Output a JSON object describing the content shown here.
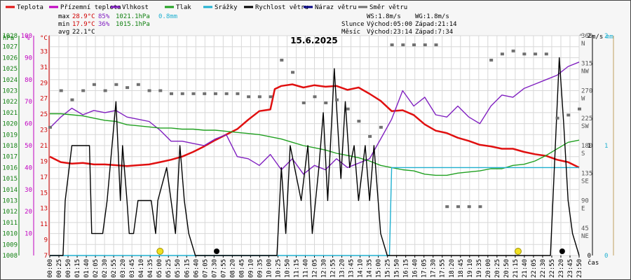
{
  "chart_data": {
    "type": "line",
    "title": "15.6.2025",
    "x_unit": "čas",
    "x_ticks": [
      "00:00",
      "00:25",
      "00:50",
      "01:15",
      "01:40",
      "02:05",
      "02:30",
      "02:55",
      "03:20",
      "03:45",
      "04:10",
      "04:35",
      "05:00",
      "05:25",
      "05:50",
      "06:15",
      "06:40",
      "07:05",
      "07:30",
      "07:55",
      "08:20",
      "08:45",
      "09:10",
      "09:35",
      "10:00",
      "10:25",
      "10:50",
      "11:15",
      "11:40",
      "12:05",
      "12:30",
      "12:55",
      "13:20",
      "13:45",
      "14:10",
      "14:35",
      "15:00",
      "15:25",
      "15:50",
      "16:15",
      "16:40",
      "17:05",
      "17:30",
      "17:55",
      "18:20",
      "18:45",
      "19:10",
      "19:35",
      "20:00",
      "20:25",
      "20:50",
      "21:15",
      "21:40",
      "22:05",
      "22:30",
      "22:55",
      "23:20",
      "23:45",
      "23:50"
    ],
    "x_range_hours": [
      0,
      24
    ],
    "axes": {
      "pressure": {
        "unit": "hPa",
        "min": 1008,
        "max": 1028,
        "ticks": [
          1008,
          1009,
          1010,
          1011,
          1012,
          1013,
          1014,
          1015,
          1016,
          1017,
          1018,
          1019,
          1020,
          1021,
          1022,
          1023,
          1024,
          1025,
          1026,
          1027,
          1028
        ]
      },
      "humidity": {
        "unit": "%",
        "min": 0,
        "max": 100,
        "ticks": [
          10,
          20,
          30,
          40,
          50,
          60,
          70,
          80,
          90,
          100
        ]
      },
      "temperature": {
        "unit": "°C",
        "min": 7,
        "max": 35,
        "ticks": [
          7,
          9,
          11,
          13,
          15,
          17,
          19,
          21,
          23,
          25,
          27,
          29,
          31,
          33
        ]
      },
      "direction": {
        "unit": "°",
        "min": 0,
        "max": 360,
        "ticks": [
          "45 NE",
          "90 E",
          "135 SE",
          "180 S",
          "225 SW",
          "270 W",
          "315 NW",
          "360 N"
        ]
      },
      "wind": {
        "unit": "m/s",
        "min": 0,
        "max": 2,
        "ticks": [
          "0",
          "1",
          "2"
        ]
      },
      "rain": {
        "unit": "mm",
        "min": 0,
        "max": 2,
        "ticks": [
          "0",
          "1",
          "2"
        ]
      }
    },
    "legend": [
      {
        "label": "Teplota",
        "color": "#e01010"
      },
      {
        "label": "Přízemní teplota",
        "color": "#c000c0"
      },
      {
        "label": "Vlhkost",
        "color": "#8020c0"
      },
      {
        "label": "Tlak",
        "color": "#20a020"
      },
      {
        "label": "Srážky",
        "color": "#20b0d0"
      },
      {
        "label": "Rychlost větru",
        "color": "#000000"
      },
      {
        "label": "Náraz větru",
        "color": "#000080"
      },
      {
        "label": "Směr větru",
        "color": "#707070"
      }
    ],
    "summary": {
      "max_row": {
        "label": "max",
        "temp": "28.9°C",
        "hum": "85%",
        "press": "1021.1hPa",
        "rain": "0.8mm"
      },
      "min_row": {
        "label": "min",
        "temp": "17.9°C",
        "hum": "36%",
        "press": "1015.1hPa"
      },
      "avg_row": {
        "label": "avg",
        "temp": "22.1°C"
      },
      "ws": "WS:1.8m/s",
      "wg": "WG:1.8m/s",
      "sun_label": "Slunce",
      "sunrise": "Východ:05:00",
      "sunset": "Západ:21:14",
      "moon_label": "Měsíc",
      "moonrise": "Východ:23:14",
      "moonset": "Západ:7:34"
    },
    "series": [
      {
        "name": "Teplota",
        "axis": "temperature",
        "color": "#e01010",
        "x": [
          0,
          0.5,
          1,
          1.5,
          2,
          2.5,
          3,
          3.5,
          4,
          4.5,
          5,
          5.5,
          6,
          6.5,
          7,
          7.5,
          8,
          8.5,
          9,
          9.5,
          10,
          10.2,
          10.5,
          11,
          11.5,
          12,
          12.5,
          13,
          13.5,
          14,
          14.5,
          15,
          15.5,
          16,
          16.5,
          17,
          17.5,
          18,
          18.5,
          19,
          19.5,
          20,
          20.5,
          21,
          21.5,
          22,
          22.5,
          23,
          23.5,
          24
        ],
        "values": [
          19.6,
          18.9,
          18.7,
          18.8,
          18.6,
          18.6,
          18.5,
          18.4,
          18.5,
          18.6,
          18.9,
          19.2,
          19.6,
          20.2,
          20.9,
          21.7,
          22.4,
          23.1,
          24.3,
          25.4,
          25.6,
          28.2,
          28.6,
          28.8,
          28.4,
          28.7,
          28.5,
          28.6,
          28.1,
          28.4,
          27.6,
          26.7,
          25.4,
          25.5,
          24.9,
          23.7,
          22.9,
          22.6,
          22.0,
          21.6,
          21.1,
          20.9,
          20.6,
          20.6,
          20.2,
          19.9,
          19.7,
          19.2,
          18.9,
          18.2
        ]
      },
      {
        "name": "Vlhkost",
        "axis": "humidity",
        "color": "#8020c0",
        "x": [
          0,
          0.5,
          1,
          1.5,
          2,
          2.5,
          3,
          3.5,
          4,
          4.5,
          5,
          5.5,
          6,
          6.5,
          7,
          7.5,
          8,
          8.5,
          9,
          9.5,
          10,
          10.5,
          11,
          11.5,
          12,
          12.5,
          13,
          13.5,
          14,
          14.5,
          15,
          15.5,
          16,
          16.5,
          17,
          17.5,
          18,
          18.5,
          19,
          19.5,
          20,
          20.5,
          21,
          21.5,
          22,
          22.5,
          23,
          23.5,
          24
        ],
        "values": [
          58,
          63,
          67,
          64,
          66,
          65,
          66,
          63,
          62,
          61,
          57,
          52,
          52,
          51,
          50,
          53,
          55,
          45,
          44,
          41,
          46,
          39,
          44,
          37,
          41,
          39,
          44,
          40,
          42,
          44,
          53,
          62,
          75,
          68,
          72,
          64,
          63,
          68,
          63,
          60,
          68,
          73,
          72,
          76,
          78,
          80,
          82,
          86,
          88
        ]
      },
      {
        "name": "Tlak",
        "axis": "pressure",
        "color": "#20a020",
        "x": [
          0,
          0.5,
          1,
          1.5,
          2,
          2.5,
          3,
          3.5,
          4,
          4.5,
          5,
          5.5,
          6,
          6.5,
          7,
          7.5,
          8,
          8.5,
          9,
          9.5,
          10,
          10.5,
          11,
          11.5,
          12,
          12.5,
          13,
          13.5,
          14,
          14.5,
          15,
          15.5,
          16,
          16.5,
          17,
          17.5,
          18,
          18.5,
          19,
          19.5,
          20,
          20.5,
          21,
          21.5,
          22,
          22.5,
          23,
          23.5,
          24
        ],
        "values": [
          1020.9,
          1020.9,
          1020.8,
          1020.7,
          1020.5,
          1020.3,
          1020.2,
          1019.9,
          1019.8,
          1019.7,
          1019.6,
          1019.6,
          1019.5,
          1019.5,
          1019.4,
          1019.4,
          1019.3,
          1019.2,
          1019.1,
          1019.0,
          1018.8,
          1018.6,
          1018.3,
          1018.0,
          1017.8,
          1017.6,
          1017.3,
          1017.1,
          1016.9,
          1016.6,
          1016.2,
          1016.0,
          1015.8,
          1015.7,
          1015.4,
          1015.3,
          1015.3,
          1015.5,
          1015.6,
          1015.7,
          1015.9,
          1015.9,
          1016.2,
          1016.3,
          1016.6,
          1017.1,
          1017.7,
          1018.3,
          1018.5
        ]
      },
      {
        "name": "Srážky",
        "axis": "rain",
        "color": "#20b0d0",
        "x": [
          0,
          15.4,
          15.5,
          24
        ],
        "values": [
          0,
          0,
          0.8,
          0.8
        ]
      },
      {
        "name": "Rychlost větru",
        "axis": "wind",
        "color": "#000000",
        "x": [
          0,
          0.6,
          0.7,
          1.0,
          1.8,
          1.9,
          2.4,
          2.6,
          3.0,
          3.2,
          3.3,
          3.5,
          3.6,
          3.8,
          4.0,
          4.6,
          4.8,
          4.9,
          5.3,
          5.5,
          5.7,
          5.9,
          6.1,
          6.3,
          6.6,
          10.3,
          10.5,
          10.7,
          10.9,
          11.4,
          11.7,
          11.9,
          12.2,
          12.4,
          12.6,
          12.9,
          13.2,
          13.4,
          13.6,
          13.8,
          14.0,
          14.3,
          14.5,
          14.7,
          15.0,
          15.3,
          15.5,
          16.0,
          18.0,
          20.0,
          22.0,
          22.7,
          23.1,
          23.3,
          23.5,
          23.7,
          24
        ],
        "values": [
          0,
          0,
          0.5,
          1.0,
          1.0,
          0.2,
          0.2,
          0.5,
          1.4,
          0.5,
          1.0,
          0.5,
          0.2,
          0.2,
          0.5,
          0.5,
          0.2,
          0.5,
          0.8,
          0.5,
          0.2,
          1.0,
          0.5,
          0.2,
          0,
          0,
          0.8,
          0.2,
          1.0,
          0.5,
          1.0,
          0.2,
          0.8,
          1.3,
          0.5,
          1.7,
          0.7,
          1.4,
          0.8,
          1.0,
          0.5,
          1.0,
          0.5,
          1.0,
          0.2,
          0,
          0,
          0,
          0,
          0,
          0,
          0,
          1.8,
          1.2,
          0.5,
          0.2,
          0
        ]
      },
      {
        "name": "Směr větru",
        "axis": "direction",
        "color": "#707070",
        "x": [
          0,
          0.5,
          1,
          1.5,
          2,
          2.5,
          3,
          3.5,
          4,
          4.5,
          5,
          5.5,
          6,
          6.5,
          7,
          7.5,
          8,
          8.5,
          9,
          9.5,
          10,
          10.5,
          11,
          11.5,
          12,
          12.5,
          13,
          13.5,
          14,
          14.5,
          15,
          15.5,
          16,
          16.5,
          17,
          17.5,
          18,
          18.5,
          19,
          19.5,
          20,
          20.5,
          21,
          21.5,
          22,
          22.5,
          23,
          23.5,
          24
        ],
        "values": [
          210,
          270,
          255,
          270,
          280,
          270,
          280,
          275,
          280,
          270,
          270,
          265,
          265,
          265,
          265,
          265,
          265,
          265,
          260,
          260,
          260,
          320,
          300,
          250,
          260,
          250,
          255,
          240,
          220,
          195,
          210,
          345,
          345,
          345,
          345,
          345,
          80,
          80,
          80,
          80,
          320,
          330,
          335,
          330,
          330,
          330,
          225,
          230,
          240
        ]
      }
    ],
    "markers": [
      "sunrise-05:00",
      "sunset-21:14",
      "moonrise-23:14",
      "moonset-7:34"
    ]
  }
}
